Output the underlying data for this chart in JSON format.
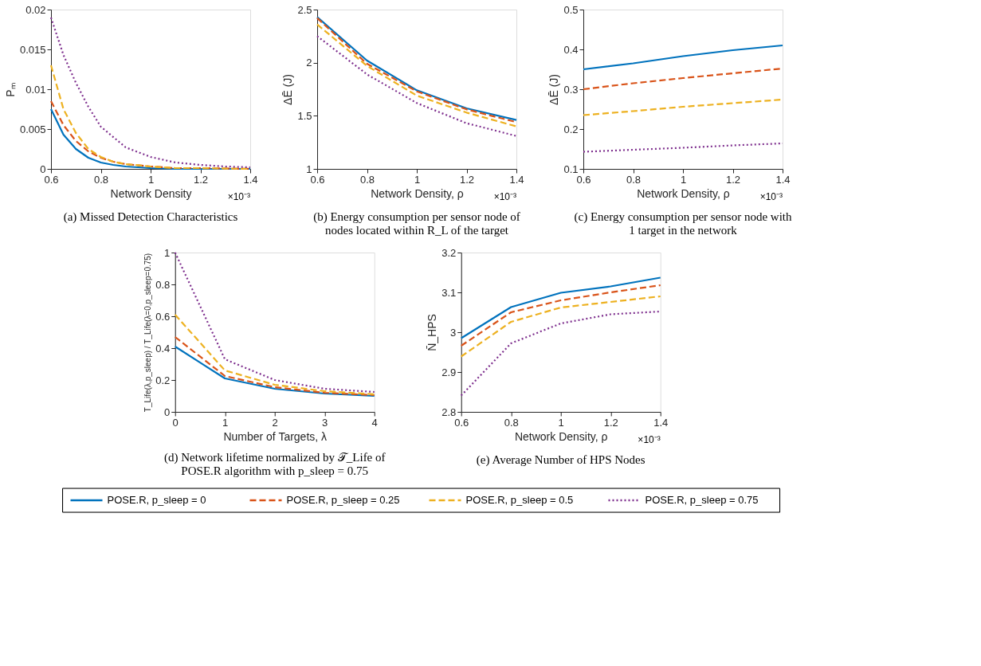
{
  "chart_data": [
    {
      "type": "line",
      "title": "(a) Missed Detection Characteristics",
      "xlabel": "Network Density",
      "ylabel": "Pₘ",
      "annotations": [
        "×10⁻³"
      ],
      "xlim": [
        0.6,
        1.4
      ],
      "xticks": [
        0.6,
        0.8,
        1,
        1.2,
        1.4
      ],
      "ylim": [
        0,
        0.02
      ],
      "yticks": [
        0,
        0.005,
        0.01,
        0.015,
        0.02
      ],
      "grid": false,
      "series": [
        {
          "color": "#0072bd",
          "line_style": "solid",
          "x": [
            0.6,
            0.65,
            0.7,
            0.75,
            0.8,
            0.85,
            0.9,
            1.0,
            1.1,
            1.2,
            1.4
          ],
          "values": [
            0.0075,
            0.0043,
            0.0025,
            0.0014,
            0.0008,
            0.0005,
            0.0003,
            0.0001,
            0,
            0,
            0
          ]
        },
        {
          "color": "#d95319",
          "line_style": "dashed",
          "x": [
            0.6,
            0.65,
            0.7,
            0.75,
            0.8,
            0.85,
            0.9,
            1.0,
            1.1,
            1.2,
            1.4
          ],
          "values": [
            0.0085,
            0.0055,
            0.0035,
            0.0022,
            0.0014,
            0.0009,
            0.0006,
            0.0003,
            0.0001,
            0.0001,
            0
          ]
        },
        {
          "color": "#edb120",
          "line_style": "dashed",
          "x": [
            0.6,
            0.65,
            0.7,
            0.75,
            0.8,
            0.85,
            0.9,
            1.0,
            1.1,
            1.2,
            1.4
          ],
          "values": [
            0.013,
            0.0075,
            0.0045,
            0.0025,
            0.0015,
            0.0009,
            0.0006,
            0.0003,
            0.0001,
            0.0001,
            0
          ]
        },
        {
          "color": "#7e2f8e",
          "line_style": "dotted",
          "x": [
            0.6,
            0.65,
            0.7,
            0.75,
            0.8,
            0.9,
            1.0,
            1.1,
            1.2,
            1.3,
            1.4
          ],
          "values": [
            0.019,
            0.0143,
            0.0108,
            0.0078,
            0.0053,
            0.0027,
            0.0015,
            0.0008,
            0.0005,
            0.0003,
            0.0002
          ]
        }
      ]
    },
    {
      "type": "line",
      "title": "(b) Energy consumption per sensor node of nodes located within R_L of the target",
      "xlabel": "Network Density, ρ",
      "ylabel": "ΔĒ (J)",
      "annotations": [
        "×10⁻³"
      ],
      "x": [
        0.6,
        0.8,
        1,
        1.2,
        1.4
      ],
      "xlim": [
        0.6,
        1.4
      ],
      "xticks": [
        0.6,
        0.8,
        1,
        1.2,
        1.4
      ],
      "ylim": [
        1,
        2.5
      ],
      "yticks": [
        1,
        1.5,
        2,
        2.5
      ],
      "grid": false,
      "series": [
        {
          "color": "#0072bd",
          "line_style": "solid",
          "values": [
            2.43,
            2.02,
            1.74,
            1.57,
            1.46
          ]
        },
        {
          "color": "#d95319",
          "line_style": "dashed",
          "values": [
            2.42,
            1.99,
            1.73,
            1.56,
            1.44
          ]
        },
        {
          "color": "#edb120",
          "line_style": "dashed",
          "values": [
            2.36,
            1.97,
            1.69,
            1.53,
            1.4
          ]
        },
        {
          "color": "#7e2f8e",
          "line_style": "dotted",
          "values": [
            2.25,
            1.89,
            1.62,
            1.43,
            1.31
          ]
        }
      ]
    },
    {
      "type": "line",
      "title": "(c) Energy consumption per sensor node with 1 target in the network",
      "xlabel": "Network Density, ρ",
      "ylabel": "ΔĒ (J)",
      "annotations": [
        "×10⁻³"
      ],
      "x": [
        0.6,
        0.8,
        1,
        1.2,
        1.4
      ],
      "xlim": [
        0.6,
        1.4
      ],
      "xticks": [
        0.6,
        0.8,
        1,
        1.2,
        1.4
      ],
      "ylim": [
        0.1,
        0.5
      ],
      "yticks": [
        0.1,
        0.2,
        0.3,
        0.4,
        0.5
      ],
      "grid": false,
      "series": [
        {
          "color": "#0072bd",
          "line_style": "solid",
          "values": [
            0.35,
            0.365,
            0.383,
            0.398,
            0.41
          ]
        },
        {
          "color": "#d95319",
          "line_style": "dashed",
          "values": [
            0.3,
            0.315,
            0.328,
            0.34,
            0.352
          ]
        },
        {
          "color": "#edb120",
          "line_style": "dashed",
          "values": [
            0.235,
            0.245,
            0.256,
            0.265,
            0.274
          ]
        },
        {
          "color": "#7e2f8e",
          "line_style": "dotted",
          "values": [
            0.143,
            0.148,
            0.153,
            0.159,
            0.164
          ]
        }
      ]
    },
    {
      "type": "line",
      "title": "(d) Network lifetime normalized by 𝒯_Life of POSE.R algorithm with p_sleep = 0.75",
      "xlabel": "Number of Targets, λ",
      "ylabel": "T_Life(λ,p_sleep) / T_Life(λ=0,p_sleep=0.75)",
      "x": [
        0,
        1,
        2,
        3,
        4
      ],
      "xlim": [
        0,
        4
      ],
      "xticks": [
        0,
        1,
        2,
        3,
        4
      ],
      "ylim": [
        0,
        1
      ],
      "yticks": [
        0,
        0.2,
        0.4,
        0.6,
        0.8,
        1
      ],
      "grid": false,
      "series": [
        {
          "color": "#0072bd",
          "line_style": "solid",
          "values": [
            0.41,
            0.21,
            0.145,
            0.115,
            0.1
          ]
        },
        {
          "color": "#d95319",
          "line_style": "dashed",
          "values": [
            0.47,
            0.225,
            0.155,
            0.12,
            0.105
          ]
        },
        {
          "color": "#edb120",
          "line_style": "dashed",
          "values": [
            0.61,
            0.26,
            0.17,
            0.13,
            0.11
          ]
        },
        {
          "color": "#7e2f8e",
          "line_style": "dotted",
          "values": [
            1.0,
            0.33,
            0.2,
            0.145,
            0.125
          ]
        }
      ]
    },
    {
      "type": "line",
      "title": "(e) Average Number of HPS Nodes",
      "xlabel": "Network Density, ρ",
      "ylabel": "N̄_HPS",
      "annotations": [
        "×10⁻³"
      ],
      "legend": "bottom",
      "x": [
        0.6,
        0.8,
        1,
        1.2,
        1.4
      ],
      "xlim": [
        0.6,
        1.4
      ],
      "xticks": [
        0.6,
        0.8,
        1,
        1.2,
        1.4
      ],
      "ylim": [
        2.8,
        3.2
      ],
      "yticks": [
        2.8,
        2.9,
        3,
        3.1,
        3.2
      ],
      "grid": false,
      "series": [
        {
          "name": "POSE.R, p_sleep = 0",
          "color": "#0072bd",
          "line_style": "solid",
          "values": [
            2.985,
            3.063,
            3.099,
            3.115,
            3.137
          ]
        },
        {
          "name": "POSE.R, p_sleep = 0.25",
          "color": "#d95319",
          "line_style": "dashed",
          "values": [
            2.966,
            3.05,
            3.08,
            3.1,
            3.118
          ]
        },
        {
          "name": "POSE.R, p_sleep = 0.5",
          "color": "#edb120",
          "line_style": "dashed",
          "values": [
            2.939,
            3.026,
            3.062,
            3.076,
            3.09
          ]
        },
        {
          "name": "POSE.R, p_sleep = 0.75",
          "color": "#7e2f8e",
          "line_style": "dotted",
          "values": [
            2.841,
            2.972,
            3.022,
            3.045,
            3.052
          ]
        }
      ]
    }
  ]
}
